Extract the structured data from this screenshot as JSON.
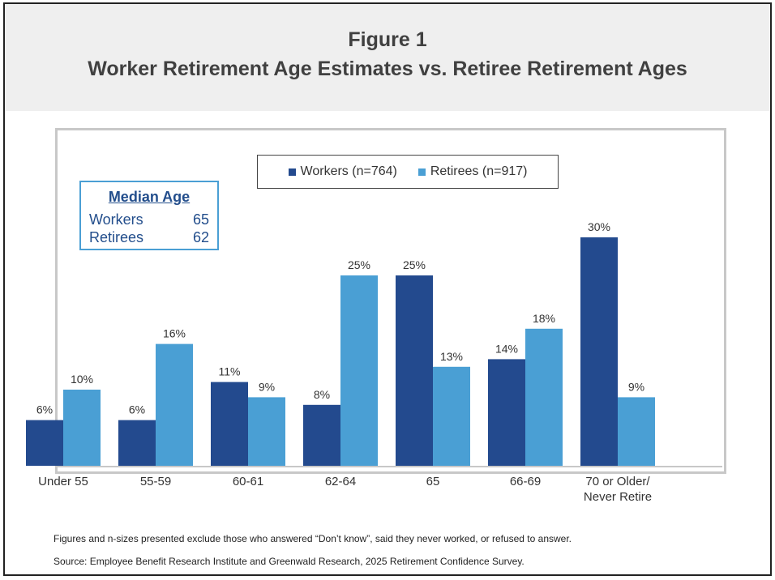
{
  "header": {
    "figure_label": "Figure 1",
    "title": "Worker Retirement Age Estimates vs. Retiree Retirement Ages"
  },
  "legend": {
    "workers": "Workers (n=764)",
    "retirees": "Retirees (n=917)"
  },
  "median": {
    "title": "Median Age",
    "rows": [
      {
        "label": "Workers",
        "value": "65"
      },
      {
        "label": "Retirees",
        "value": "62"
      }
    ]
  },
  "notes": {
    "footnote": "Figures and n-sizes presented exclude those who answered “Don’t know”, said they never worked, or refused to answer.",
    "source": "Source:  Employee Benefit Research Institute and Greenwald Research, 2025 Retirement Confidence Survey."
  },
  "colors": {
    "workers": "#234a8e",
    "retirees": "#4a9fd4",
    "header_bg": "#efefef"
  },
  "chart_data": {
    "type": "bar",
    "categories": [
      [
        "Under 55"
      ],
      [
        "55-59"
      ],
      [
        "60-61"
      ],
      [
        "62-64"
      ],
      [
        "65"
      ],
      [
        "66-69"
      ],
      [
        "70 or Older/",
        "Never Retire"
      ]
    ],
    "series": [
      {
        "name": "Workers (n=764)",
        "values": [
          6,
          6,
          11,
          8,
          25,
          14,
          30
        ],
        "color": "#234a8e"
      },
      {
        "name": "Retirees (n=917)",
        "values": [
          10,
          16,
          9,
          25,
          13,
          18,
          9
        ],
        "color": "#4a9fd4"
      }
    ],
    "value_suffix": "%",
    "ylim": [
      0,
      30
    ],
    "grid": false,
    "legend_position": "top-center"
  }
}
